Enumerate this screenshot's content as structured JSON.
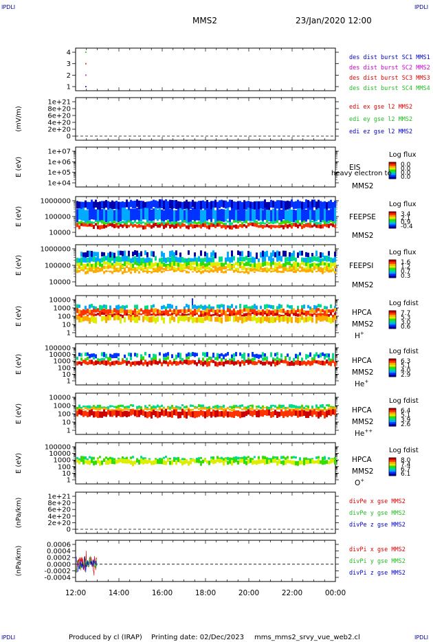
{
  "corner_marks": [
    "IPDLI",
    "IPDLI",
    "IPDLI",
    "IPDLI"
  ],
  "header": {
    "spacecraft": "MMS2",
    "datetime": "23/Jan/2020 12:00"
  },
  "footer": {
    "producer": "Produced by cl (IRAP)",
    "printing": "Printing date: 02/Dec/2023",
    "file": "mms_mms2_srvy_vue_web2.cl"
  },
  "colors": {
    "mms1": "#0000cc",
    "mms2": "#cc00cc",
    "mms3": "#dd0000",
    "mms4": "#22bb22",
    "x": "#dd0000",
    "y": "#22bb22",
    "z": "#0000cc"
  },
  "colormap": [
    "#0000aa",
    "#0033ff",
    "#00aaff",
    "#00dd88",
    "#33dd00",
    "#ddee00",
    "#ffaa00",
    "#ff3300",
    "#cc0000"
  ],
  "chart_data": [
    {
      "id": "des",
      "type": "scatter",
      "xlim": [
        "12:00",
        "00:00"
      ],
      "ylim": [
        0.5,
        4.5
      ],
      "yticks": [
        "4",
        "3",
        "2",
        "1"
      ],
      "series": [
        {
          "name": "des dist burst SC1 MMS1",
          "color": "#0000cc",
          "x": [
            "12:27"
          ],
          "y": [
            1
          ]
        },
        {
          "name": "des dist burst SC2 MMS2",
          "color": "#cc00cc",
          "x": [
            "12:27"
          ],
          "y": [
            2
          ]
        },
        {
          "name": "des dist burst SC3 MMS3",
          "color": "#dd0000",
          "x": [
            "12:27"
          ],
          "y": [
            3
          ]
        },
        {
          "name": "des dist burst SC4 MMS4",
          "color": "#22bb22",
          "x": [
            "12:27"
          ],
          "y": [
            4
          ]
        }
      ],
      "legend": [
        "des dist burst SC1 MMS1",
        "des dist burst SC2 MMS2",
        "des dist burst SC3 MMS3",
        "des dist burst SC4 MMS4"
      ]
    },
    {
      "id": "edi",
      "type": "line",
      "ylabel": "(mV/m)",
      "yticks": [
        "1e+21",
        "8e+20",
        "6e+20",
        "4e+20",
        "2e+20",
        "0"
      ],
      "legend": [
        "edi ex gse l2 MMS2",
        "edi ey gse l2 MMS2",
        "edi ez gse l2 MMS2"
      ],
      "zero_line": true
    },
    {
      "id": "eis",
      "type": "heatmap",
      "ylabel": "E (eV)",
      "yscale": "log",
      "yticks": [
        "1e+07",
        "1e+06",
        "1e+05",
        "1e+04"
      ],
      "instrument": "EIS",
      "spacecraft": "MMS2",
      "overlay_text": "heavy electron to",
      "cbar_title": "Log flux",
      "cbar_ticks": [
        "0.0",
        "0.0",
        "0.0",
        "0.0"
      ]
    },
    {
      "id": "feepse",
      "type": "heatmap",
      "ylabel": "E (eV)",
      "yscale": "log",
      "yticks": [
        "1000000",
        "100000",
        "10000"
      ],
      "instrument": "FEEPSE",
      "spacecraft": "MMS2",
      "cbar_title": "Log flux",
      "cbar_ticks": [
        "3.4",
        "2.1",
        "0.9",
        "-0.4"
      ]
    },
    {
      "id": "feepsi",
      "type": "heatmap",
      "ylabel": "E (eV)",
      "yscale": "log",
      "yticks": [
        "1000000",
        "100000",
        "10000"
      ],
      "instrument": "FEEPSI",
      "spacecraft": "MMS2",
      "cbar_title": "Log flux",
      "cbar_ticks": [
        "1.6",
        "1.2",
        "0.7",
        "0.3"
      ]
    },
    {
      "id": "hpca_h",
      "type": "heatmap",
      "ylabel": "E (eV)",
      "yscale": "log",
      "yticks": [
        "10000",
        "1000",
        "100",
        "10",
        "1"
      ],
      "instrument": "HPCA",
      "spacecraft": "MMS2",
      "species": "H",
      "species_charge": "+",
      "cbar_title": "Log fdist",
      "cbar_ticks": [
        "7.7",
        "5.3",
        "3.0",
        "0.6"
      ]
    },
    {
      "id": "hpca_he",
      "type": "heatmap",
      "ylabel": "E (eV)",
      "yscale": "log",
      "yticks": [
        "100000",
        "10000",
        "1000",
        "100",
        "10",
        "1"
      ],
      "instrument": "HPCA",
      "spacecraft": "MMS2",
      "species": "He",
      "species_charge": "+",
      "cbar_title": "Log fdist",
      "cbar_ticks": [
        "6.3",
        "5.1",
        "4.0",
        "2.9"
      ]
    },
    {
      "id": "hpca_hepp",
      "type": "heatmap",
      "ylabel": "E (eV)",
      "yscale": "log",
      "yticks": [
        "10000",
        "1000",
        "100",
        "10",
        "1"
      ],
      "instrument": "HPCA",
      "spacecraft": "MMS2",
      "species": "He",
      "species_charge": "++",
      "cbar_title": "Log fdist",
      "cbar_ticks": [
        "6.4",
        "5.1",
        "3.9",
        "2.6"
      ]
    },
    {
      "id": "hpca_o",
      "type": "heatmap",
      "ylabel": "E (eV)",
      "yscale": "log",
      "yticks": [
        "100000",
        "10000",
        "1000",
        "100",
        "10",
        "1"
      ],
      "instrument": "HPCA",
      "spacecraft": "MMS2",
      "species": "O",
      "species_charge": "+",
      "cbar_title": "Log fdist",
      "cbar_ticks": [
        "8.0",
        "7.4",
        "6.7",
        "6.1"
      ]
    },
    {
      "id": "divpe",
      "type": "line",
      "ylabel": "(nPa/km)",
      "yticks": [
        "1e+21",
        "8e+20",
        "6e+20",
        "4e+20",
        "2e+20",
        "0"
      ],
      "legend": [
        "divPe x gse MMS2",
        "divPe y gse MMS2",
        "divPe z gse MMS2"
      ],
      "zero_line": true
    },
    {
      "id": "divpi",
      "type": "line",
      "ylabel": "(nPa/km)",
      "yticks": [
        "0.0006",
        "0.0004",
        "0.0002",
        "0.0000",
        "-0.0002",
        "-0.0004"
      ],
      "legend": [
        "divPi x gse MMS2",
        "divPi y gse MMS2",
        "divPi z gse MMS2"
      ],
      "zero_line": true,
      "data_span": [
        "12:00",
        "13:00"
      ],
      "amplitude": 0.0005
    }
  ],
  "xaxis": {
    "ticks": [
      "12:00",
      "14:00",
      "16:00",
      "18:00",
      "20:00",
      "22:00",
      "00:00"
    ]
  }
}
